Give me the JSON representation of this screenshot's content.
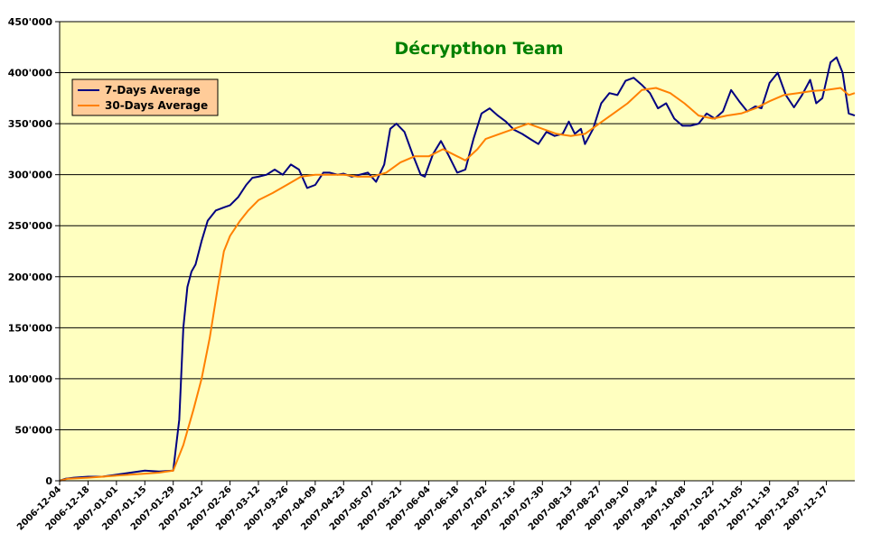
{
  "chart_data": {
    "type": "line",
    "title": "Décrypthon Team",
    "xlabel": "",
    "ylabel": "",
    "ylim": [
      0,
      450000
    ],
    "yticks": [
      0,
      50000,
      100000,
      150000,
      200000,
      250000,
      300000,
      350000,
      400000,
      450000
    ],
    "ytick_labels": [
      "0",
      "50'000",
      "100'000",
      "150'000",
      "200'000",
      "250'000",
      "300'000",
      "350'000",
      "400'000",
      "450'000"
    ],
    "x_start": "2006-12-04",
    "x_end": "2007-12-31",
    "xtick_labels": [
      "2006-12-04",
      "2006-12-18",
      "2007-01-01",
      "2007-01-15",
      "2007-01-29",
      "2007-02-12",
      "2007-02-26",
      "2007-03-12",
      "2007-03-26",
      "2007-04-09",
      "2007-04-23",
      "2007-05-07",
      "2007-05-21",
      "2007-06-04",
      "2007-06-18",
      "2007-07-02",
      "2007-07-16",
      "2007-07-30",
      "2007-08-13",
      "2007-08-27",
      "2007-09-10",
      "2007-09-24",
      "2007-10-08",
      "2007-10-22",
      "2007-11-05",
      "2007-11-19",
      "2007-12-03",
      "2007-12-17"
    ],
    "grid": "horizontal",
    "legend_position": "top-left",
    "colors": {
      "plot_background": "#ffffc0",
      "grid": "#000000",
      "title": "#008000",
      "legend_background": "#ffcc99"
    },
    "series": [
      {
        "name": "7-Days Average",
        "color": "#000080",
        "points": [
          [
            "2006-12-04",
            0
          ],
          [
            "2006-12-07",
            2000
          ],
          [
            "2006-12-11",
            3000
          ],
          [
            "2006-12-18",
            4000
          ],
          [
            "2006-12-25",
            4000
          ],
          [
            "2007-01-01",
            6000
          ],
          [
            "2007-01-08",
            8000
          ],
          [
            "2007-01-15",
            10000
          ],
          [
            "2007-01-22",
            9000
          ],
          [
            "2007-01-29",
            10000
          ],
          [
            "2007-02-01",
            60000
          ],
          [
            "2007-02-03",
            150000
          ],
          [
            "2007-02-05",
            190000
          ],
          [
            "2007-02-07",
            205000
          ],
          [
            "2007-02-09",
            212000
          ],
          [
            "2007-02-12",
            235000
          ],
          [
            "2007-02-15",
            255000
          ],
          [
            "2007-02-19",
            265000
          ],
          [
            "2007-02-23",
            268000
          ],
          [
            "2007-02-26",
            270000
          ],
          [
            "2007-03-02",
            278000
          ],
          [
            "2007-03-06",
            290000
          ],
          [
            "2007-03-09",
            297000
          ],
          [
            "2007-03-12",
            298000
          ],
          [
            "2007-03-16",
            300000
          ],
          [
            "2007-03-20",
            305000
          ],
          [
            "2007-03-24",
            300000
          ],
          [
            "2007-03-28",
            310000
          ],
          [
            "2007-04-01",
            305000
          ],
          [
            "2007-04-05",
            287000
          ],
          [
            "2007-04-09",
            290000
          ],
          [
            "2007-04-13",
            302000
          ],
          [
            "2007-04-16",
            302000
          ],
          [
            "2007-04-20",
            300000
          ],
          [
            "2007-04-23",
            301000
          ],
          [
            "2007-04-27",
            298000
          ],
          [
            "2007-05-01",
            300000
          ],
          [
            "2007-05-05",
            302000
          ],
          [
            "2007-05-09",
            293000
          ],
          [
            "2007-05-13",
            310000
          ],
          [
            "2007-05-16",
            345000
          ],
          [
            "2007-05-19",
            350000
          ],
          [
            "2007-05-23",
            342000
          ],
          [
            "2007-05-27",
            320000
          ],
          [
            "2007-05-31",
            300000
          ],
          [
            "2007-06-02",
            298000
          ],
          [
            "2007-06-06",
            320000
          ],
          [
            "2007-06-10",
            333000
          ],
          [
            "2007-06-14",
            318000
          ],
          [
            "2007-06-18",
            302000
          ],
          [
            "2007-06-22",
            305000
          ],
          [
            "2007-06-26",
            335000
          ],
          [
            "2007-06-30",
            360000
          ],
          [
            "2007-07-04",
            365000
          ],
          [
            "2007-07-08",
            358000
          ],
          [
            "2007-07-12",
            352000
          ],
          [
            "2007-07-16",
            344000
          ],
          [
            "2007-07-20",
            340000
          ],
          [
            "2007-07-24",
            335000
          ],
          [
            "2007-07-28",
            330000
          ],
          [
            "2007-08-01",
            342000
          ],
          [
            "2007-08-05",
            338000
          ],
          [
            "2007-08-09",
            340000
          ],
          [
            "2007-08-12",
            352000
          ],
          [
            "2007-08-15",
            340000
          ],
          [
            "2007-08-18",
            345000
          ],
          [
            "2007-08-20",
            330000
          ],
          [
            "2007-08-24",
            345000
          ],
          [
            "2007-08-28",
            370000
          ],
          [
            "2007-09-01",
            380000
          ],
          [
            "2007-09-05",
            378000
          ],
          [
            "2007-09-09",
            392000
          ],
          [
            "2007-09-13",
            395000
          ],
          [
            "2007-09-17",
            388000
          ],
          [
            "2007-09-21",
            380000
          ],
          [
            "2007-09-25",
            365000
          ],
          [
            "2007-09-29",
            370000
          ],
          [
            "2007-10-03",
            355000
          ],
          [
            "2007-10-07",
            348000
          ],
          [
            "2007-10-11",
            348000
          ],
          [
            "2007-10-15",
            350000
          ],
          [
            "2007-10-19",
            360000
          ],
          [
            "2007-10-23",
            355000
          ],
          [
            "2007-10-27",
            362000
          ],
          [
            "2007-10-31",
            383000
          ],
          [
            "2007-11-04",
            372000
          ],
          [
            "2007-11-08",
            362000
          ],
          [
            "2007-11-12",
            367000
          ],
          [
            "2007-11-15",
            365000
          ],
          [
            "2007-11-19",
            390000
          ],
          [
            "2007-11-23",
            400000
          ],
          [
            "2007-11-27",
            378000
          ],
          [
            "2007-12-01",
            366000
          ],
          [
            "2007-12-05",
            378000
          ],
          [
            "2007-12-09",
            393000
          ],
          [
            "2007-12-12",
            370000
          ],
          [
            "2007-12-15",
            375000
          ],
          [
            "2007-12-19",
            410000
          ],
          [
            "2007-12-22",
            415000
          ],
          [
            "2007-12-25",
            400000
          ],
          [
            "2007-12-28",
            360000
          ],
          [
            "2007-12-31",
            358000
          ]
        ]
      },
      {
        "name": "30-Days Average",
        "color": "#ff8000",
        "points": [
          [
            "2006-12-04",
            0
          ],
          [
            "2006-12-08",
            2000
          ],
          [
            "2006-12-18",
            3000
          ],
          [
            "2006-12-25",
            4000
          ],
          [
            "2007-01-01",
            5000
          ],
          [
            "2007-01-15",
            7000
          ],
          [
            "2007-01-22",
            8000
          ],
          [
            "2007-01-29",
            10000
          ],
          [
            "2007-02-03",
            35000
          ],
          [
            "2007-02-08",
            70000
          ],
          [
            "2007-02-12",
            100000
          ],
          [
            "2007-02-16",
            140000
          ],
          [
            "2007-02-20",
            190000
          ],
          [
            "2007-02-23",
            225000
          ],
          [
            "2007-02-26",
            240000
          ],
          [
            "2007-03-03",
            255000
          ],
          [
            "2007-03-07",
            265000
          ],
          [
            "2007-03-12",
            275000
          ],
          [
            "2007-03-19",
            282000
          ],
          [
            "2007-03-26",
            290000
          ],
          [
            "2007-04-02",
            298000
          ],
          [
            "2007-04-09",
            300000
          ],
          [
            "2007-04-16",
            300000
          ],
          [
            "2007-04-23",
            300000
          ],
          [
            "2007-04-30",
            298000
          ],
          [
            "2007-05-07",
            298000
          ],
          [
            "2007-05-14",
            302000
          ],
          [
            "2007-05-21",
            312000
          ],
          [
            "2007-05-28",
            318000
          ],
          [
            "2007-06-04",
            318000
          ],
          [
            "2007-06-11",
            325000
          ],
          [
            "2007-06-18",
            318000
          ],
          [
            "2007-06-22",
            314000
          ],
          [
            "2007-06-28",
            325000
          ],
          [
            "2007-07-02",
            335000
          ],
          [
            "2007-07-09",
            340000
          ],
          [
            "2007-07-16",
            345000
          ],
          [
            "2007-07-23",
            350000
          ],
          [
            "2007-07-30",
            345000
          ],
          [
            "2007-08-06",
            340000
          ],
          [
            "2007-08-13",
            338000
          ],
          [
            "2007-08-20",
            340000
          ],
          [
            "2007-08-27",
            350000
          ],
          [
            "2007-09-03",
            360000
          ],
          [
            "2007-09-10",
            370000
          ],
          [
            "2007-09-17",
            383000
          ],
          [
            "2007-09-24",
            385000
          ],
          [
            "2007-10-01",
            380000
          ],
          [
            "2007-10-08",
            370000
          ],
          [
            "2007-10-15",
            358000
          ],
          [
            "2007-10-22",
            355000
          ],
          [
            "2007-10-29",
            358000
          ],
          [
            "2007-11-05",
            360000
          ],
          [
            "2007-11-12",
            365000
          ],
          [
            "2007-11-19",
            372000
          ],
          [
            "2007-11-26",
            378000
          ],
          [
            "2007-12-03",
            380000
          ],
          [
            "2007-12-10",
            382000
          ],
          [
            "2007-12-17",
            383000
          ],
          [
            "2007-12-24",
            385000
          ],
          [
            "2007-12-28",
            378000
          ],
          [
            "2007-12-31",
            380000
          ]
        ]
      }
    ]
  }
}
